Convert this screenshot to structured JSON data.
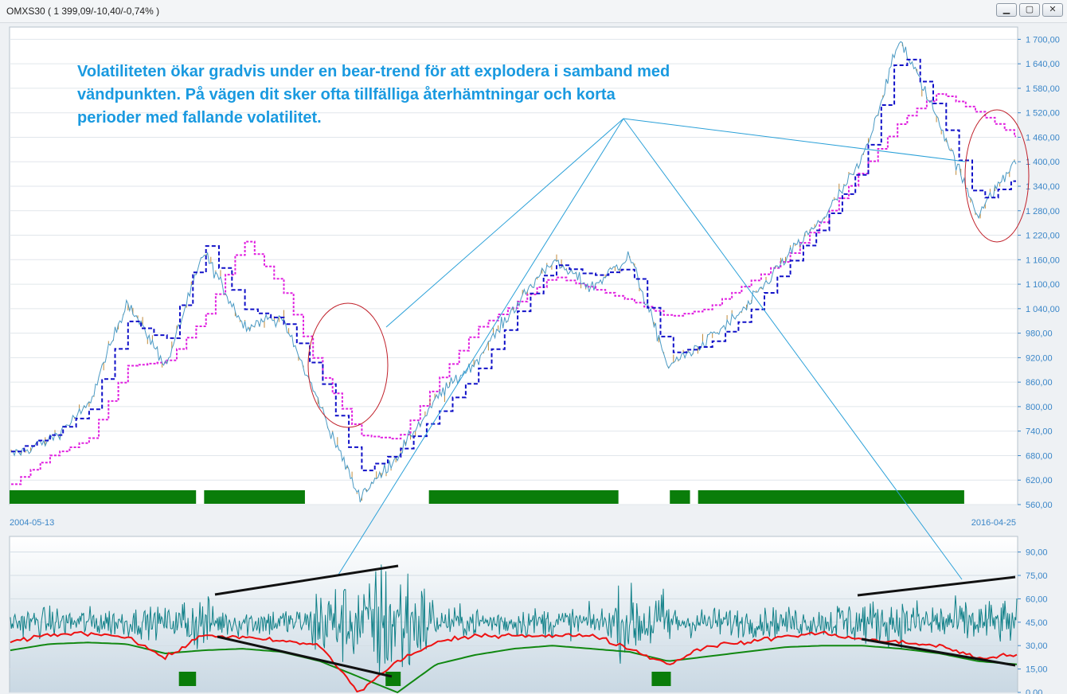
{
  "window": {
    "title": "OMXS30 ( 1 399,09/-10,40/-0,74% )",
    "buttons": [
      {
        "name": "minimize",
        "glyph": "▁"
      },
      {
        "name": "maximize",
        "glyph": "▢"
      },
      {
        "name": "close",
        "glyph": "✕"
      }
    ]
  },
  "annotation": "Volatiliteten ökar gradvis under en bear-trend för att explodera i samband med vändpunkten. På vägen dit sker ofta tillfälliga återhämtningar och korta perioder med fallande volatilitet.",
  "colors": {
    "price": "#4a9ac4",
    "price_trace": "#c08a3a",
    "stop_line": "#1010c8",
    "moving_average": "#e020e0",
    "green_bar": "#0a7d0a",
    "volatility": "#108088",
    "vol_red": "#ee1111",
    "vol_green": "#118811",
    "annotation": "#1a9ae0",
    "axis_text": "#3a86c8"
  },
  "chart_data": [
    {
      "type": "line",
      "name": "price-panel",
      "x_start_label": "2004-05-13",
      "x_end_label": "2016-04-25",
      "x": [
        "2004-05",
        "2005-01",
        "2005-09",
        "2006-05",
        "2007-02",
        "2007-06",
        "2008-01",
        "2008-06",
        "2008-10",
        "2009-03",
        "2009-06",
        "2010-01",
        "2010-06",
        "2011-01",
        "2011-08",
        "2011-10",
        "2012-04",
        "2012-09",
        "2013-06",
        "2014-01",
        "2014-07",
        "2015-01",
        "2015-04",
        "2015-08",
        "2015-11",
        "2016-02",
        "2016-04"
      ],
      "series": [
        {
          "name": "",
          "style": "price",
          "values": [
            680,
            720,
            800,
            1060,
            900,
            1180,
            1000,
            1020,
            800,
            580,
            680,
            820,
            910,
            1040,
            1160,
            1090,
            1170,
            900,
            960,
            1040,
            1160,
            1260,
            1400,
            1700,
            1500,
            1270,
            1400
          ]
        },
        {
          "name": "",
          "style": "stop",
          "values": [
            690,
            730,
            790,
            1010,
            960,
            1200,
            1040,
            1010,
            870,
            640,
            690,
            780,
            880,
            1020,
            1150,
            1120,
            1140,
            930,
            950,
            1020,
            1140,
            1250,
            1390,
            1680,
            1520,
            1300,
            1360
          ]
        },
        {
          "name": "",
          "style": "moving-average",
          "values": [
            610,
            680,
            720,
            900,
            910,
            1020,
            1210,
            1090,
            880,
            730,
            720,
            860,
            990,
            1050,
            1120,
            1090,
            1060,
            1020,
            1040,
            1100,
            1160,
            1260,
            1380,
            1500,
            1570,
            1520,
            1460
          ]
        }
      ],
      "ylim": [
        560,
        1730
      ],
      "y_ticks": [
        "560,00",
        "620,00",
        "680,00",
        "740,00",
        "800,00",
        "860,00",
        "920,00",
        "980,00",
        "1 040,00",
        "1 100,00",
        "1 160,00",
        "1 220,00",
        "1 280,00",
        "1 340,00",
        "1 400,00",
        "1 460,00",
        "1 520,00",
        "1 580,00",
        "1 640,00",
        "1 700,00"
      ],
      "y_tick_values": [
        560,
        620,
        680,
        740,
        800,
        860,
        920,
        980,
        1040,
        1100,
        1160,
        1220,
        1280,
        1340,
        1400,
        1460,
        1520,
        1580,
        1640,
        1700
      ],
      "grid": true,
      "green_bar_x_ranges": [
        [
          0.0,
          0.185
        ],
        [
          0.193,
          0.293
        ],
        [
          0.416,
          0.604
        ],
        [
          0.655,
          0.675
        ],
        [
          0.683,
          0.947
        ]
      ],
      "ellipses_note": "two circled areas"
    },
    {
      "type": "line",
      "name": "volatility-panel",
      "series": [
        {
          "name": "",
          "style": "volatility-oscillator"
        },
        {
          "name": "",
          "style": "red-average",
          "values": [
            32,
            37,
            38,
            36,
            22,
            37,
            35,
            33,
            30,
            0,
            20,
            32,
            36,
            37,
            36,
            37,
            28,
            18,
            30,
            32,
            36,
            38,
            34,
            32,
            30,
            22,
            24
          ]
        },
        {
          "name": "",
          "style": "green-average",
          "values": [
            27,
            31,
            32,
            31,
            25,
            27,
            28,
            26,
            20,
            10,
            0,
            18,
            24,
            28,
            30,
            28,
            26,
            20,
            23,
            26,
            29,
            30,
            30,
            28,
            25,
            20,
            18
          ]
        }
      ],
      "ylim": [
        0,
        100
      ],
      "y_ticks": [
        "0,00",
        "15,00",
        "30,00",
        "45,00",
        "60,00",
        "75,00",
        "90,00"
      ],
      "y_tick_values": [
        0,
        15,
        30,
        45,
        60,
        75,
        90
      ],
      "green_bar_x_ranges": [
        [
          0.168,
          0.185
        ],
        [
          0.373,
          0.388
        ],
        [
          0.637,
          0.656
        ]
      ]
    }
  ]
}
